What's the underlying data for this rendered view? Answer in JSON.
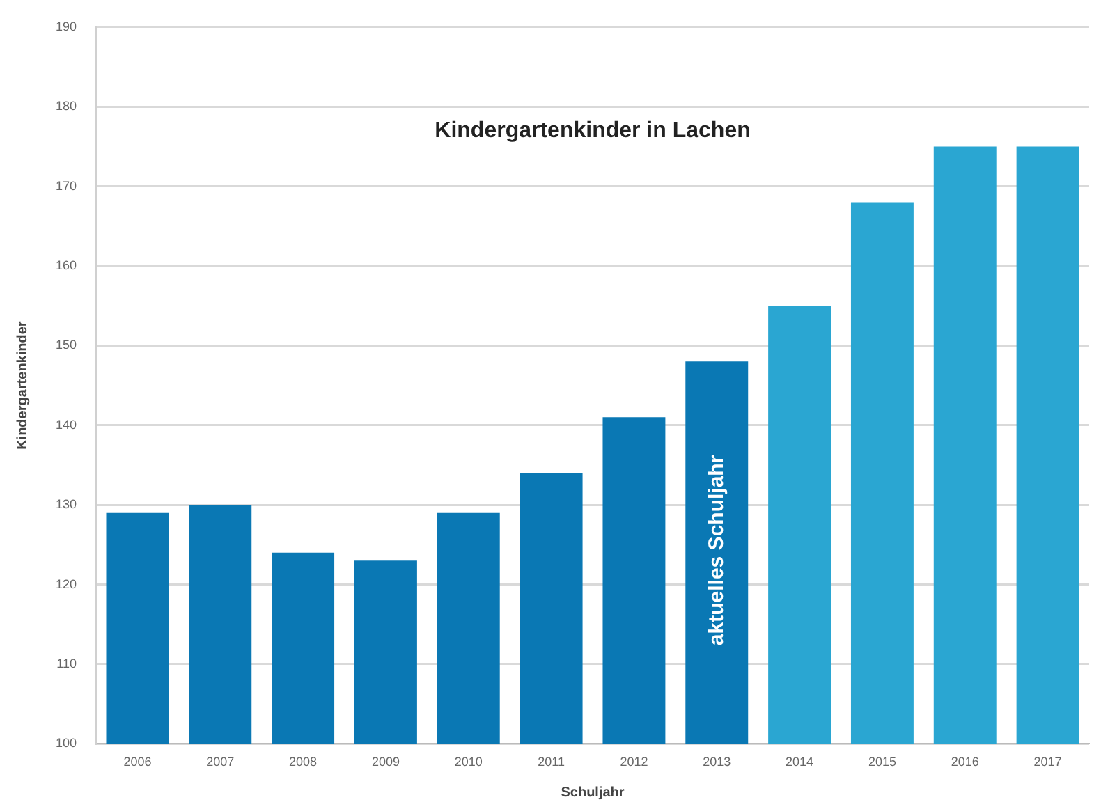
{
  "chart_data": {
    "type": "bar",
    "title": "Kindergartenkinder in Lachen",
    "xlabel": "Schuljahr",
    "ylabel": "Kindergartenkinder",
    "categories": [
      "2006",
      "2007",
      "2008",
      "2009",
      "2010",
      "2011",
      "2012",
      "2013",
      "2014",
      "2015",
      "2016",
      "2017"
    ],
    "values": [
      129,
      130,
      124,
      123,
      129,
      134,
      141,
      148,
      155,
      168,
      175,
      175
    ],
    "colors": [
      "#0a78b4",
      "#0a78b4",
      "#0a78b4",
      "#0a78b4",
      "#0a78b4",
      "#0a78b4",
      "#0a78b4",
      "#0a78b4",
      "#2aa6d2",
      "#2aa6d2",
      "#2aa6d2",
      "#2aa6d2"
    ],
    "ylim": [
      100,
      190
    ],
    "yticks": [
      100,
      110,
      120,
      130,
      140,
      150,
      160,
      170,
      180,
      190
    ],
    "annotations": [
      "aktuelles Schuljahr"
    ],
    "grid": "y",
    "legend": false
  }
}
